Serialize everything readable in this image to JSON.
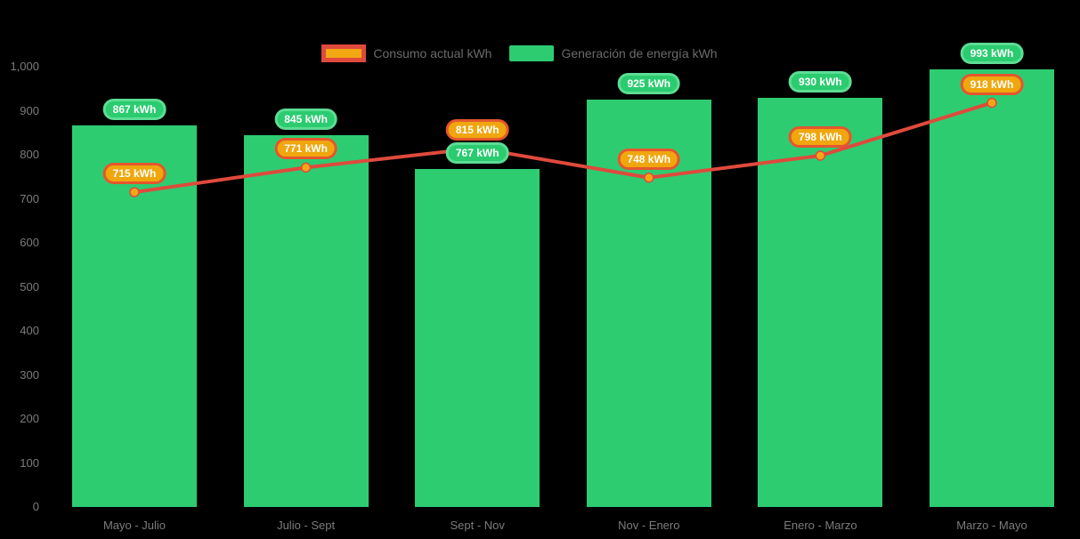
{
  "chart_data": {
    "type": "bar",
    "title": "",
    "xlabel": "",
    "ylabel": "",
    "categories": [
      "Mayo - Julio",
      "Julio - Sept",
      "Sept - Nov",
      "Nov - Enero",
      "Enero - Marzo",
      "Marzo - Mayo"
    ],
    "series": [
      {
        "name": "Generación de energía kWh",
        "type": "bar",
        "color": "#2ECC71",
        "values": [
          867,
          845,
          767,
          925,
          930,
          993
        ],
        "labels": [
          "867 kWh",
          "845 kWh",
          "767 kWh",
          "925 kWh",
          "930 kWh",
          "993 kWh"
        ],
        "label_bg": "#2BCB70",
        "label_border": "#5DDD94",
        "label_text": "#FFFFFF"
      },
      {
        "name": "Consumo actual kWh",
        "type": "line",
        "color": "#DF4A3C",
        "marker_color": "#F2A713",
        "values": [
          715,
          771,
          815,
          748,
          798,
          918
        ],
        "labels": [
          "715 kWh",
          "771 kWh",
          "815 kWh",
          "748 kWh",
          "798 kWh",
          "918 kWh"
        ],
        "label_bg": "#F0A60D",
        "label_border": "#E5562E",
        "label_text": "#FFFFFF"
      }
    ],
    "ylim": [
      0,
      1000
    ],
    "ytick_labels": [
      "0",
      "100",
      "200",
      "300",
      "400",
      "500",
      "600",
      "700",
      "800",
      "900",
      "1,000"
    ],
    "ytick_values": [
      0,
      100,
      200,
      300,
      400,
      500,
      600,
      700,
      800,
      900,
      1000
    ],
    "grid": false,
    "legend_position": "top",
    "background": "#000000",
    "axis_text_color": "#7C7C7C",
    "legend_text_color": "#6B6B6B"
  },
  "legend": {
    "order": [
      1,
      0
    ]
  }
}
